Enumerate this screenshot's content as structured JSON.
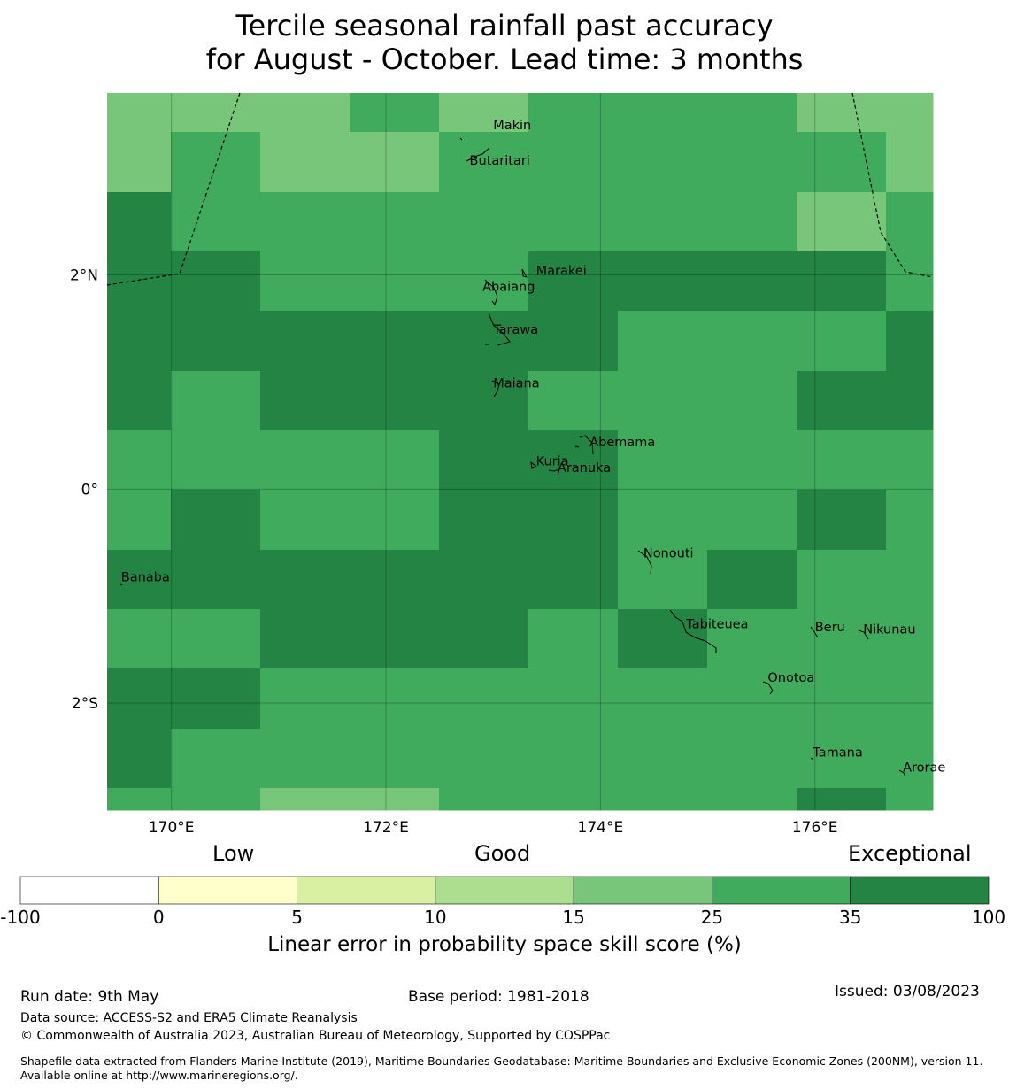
{
  "title": {
    "line1": "Tercile seasonal rainfall past accuracy",
    "line2": "for August - October. Lead time: 3 months"
  },
  "map": {
    "lon_range": [
      169.4,
      177.1
    ],
    "lat_range": [
      -3.0,
      3.7
    ],
    "x_ticks": [
      {
        "value": 170,
        "label": "170°E"
      },
      {
        "value": 172,
        "label": "172°E"
      },
      {
        "value": 174,
        "label": "174°E"
      },
      {
        "value": 176,
        "label": "176°E"
      }
    ],
    "y_ticks": [
      {
        "value": 2,
        "label": "2°N"
      },
      {
        "value": 0,
        "label": "0°"
      },
      {
        "value": -2,
        "label": "2°S"
      }
    ],
    "colors": {
      "light": "#78c679",
      "mid": "#41ab5d",
      "dark": "#238443",
      "pale": "#addd8e"
    },
    "places": [
      {
        "name": "Makin",
        "lon": 173.0,
        "lat": 3.36
      },
      {
        "name": "Butaritari",
        "lon": 172.78,
        "lat": 3.03
      },
      {
        "name": "Marakei",
        "lon": 173.4,
        "lat": 2.0
      },
      {
        "name": "Abaiang",
        "lon": 172.9,
        "lat": 1.85
      },
      {
        "name": "Tarawa",
        "lon": 173.0,
        "lat": 1.45
      },
      {
        "name": "Maiana",
        "lon": 173.0,
        "lat": 0.95
      },
      {
        "name": "Abemama",
        "lon": 173.9,
        "lat": 0.4
      },
      {
        "name": "Kuria",
        "lon": 173.4,
        "lat": 0.22
      },
      {
        "name": "Aranuka",
        "lon": 173.6,
        "lat": 0.16
      },
      {
        "name": "Nonouti",
        "lon": 174.4,
        "lat": -0.64
      },
      {
        "name": "Banaba",
        "lon": 169.53,
        "lat": -0.86
      },
      {
        "name": "Tabiteuea",
        "lon": 174.8,
        "lat": -1.3
      },
      {
        "name": "Beru",
        "lon": 176.0,
        "lat": -1.33
      },
      {
        "name": "Nikunau",
        "lon": 176.45,
        "lat": -1.35
      },
      {
        "name": "Onotoa",
        "lon": 175.56,
        "lat": -1.8
      },
      {
        "name": "Tamana",
        "lon": 175.98,
        "lat": -2.5
      },
      {
        "name": "Arorae",
        "lon": 176.82,
        "lat": -2.64
      }
    ]
  },
  "colorbar": {
    "category_labels": [
      "Low",
      "Good",
      "Exceptional"
    ],
    "boundaries": [
      "-100",
      "0",
      "5",
      "10",
      "15",
      "25",
      "35",
      "100"
    ],
    "colors": [
      "#ffffff",
      "#ffffcc",
      "#d9f0a3",
      "#addd8e",
      "#78c679",
      "#41ab5d",
      "#238443"
    ],
    "label": "Linear error in probability space skill score (%)"
  },
  "footer": {
    "run_date": "Run date: 9th May",
    "base_period": "Base period: 1981-2018",
    "issued": "Issued: 03/08/2023",
    "data_source": "Data source: ACCESS-S2 and ERA5 Climate Reanalysis",
    "copyright": "© Commonwealth of Australia 2023, Australian Bureau of Meteorology, Supported by COSPPac",
    "shapefile": "Shapefile data extracted from Flanders Marine Institute (2019), Maritime Boundaries Geodatabase: Maritime Boundaries and Exclusive Economic Zones (200NM), version 11. Available online at http://www.marineregions.org/."
  }
}
